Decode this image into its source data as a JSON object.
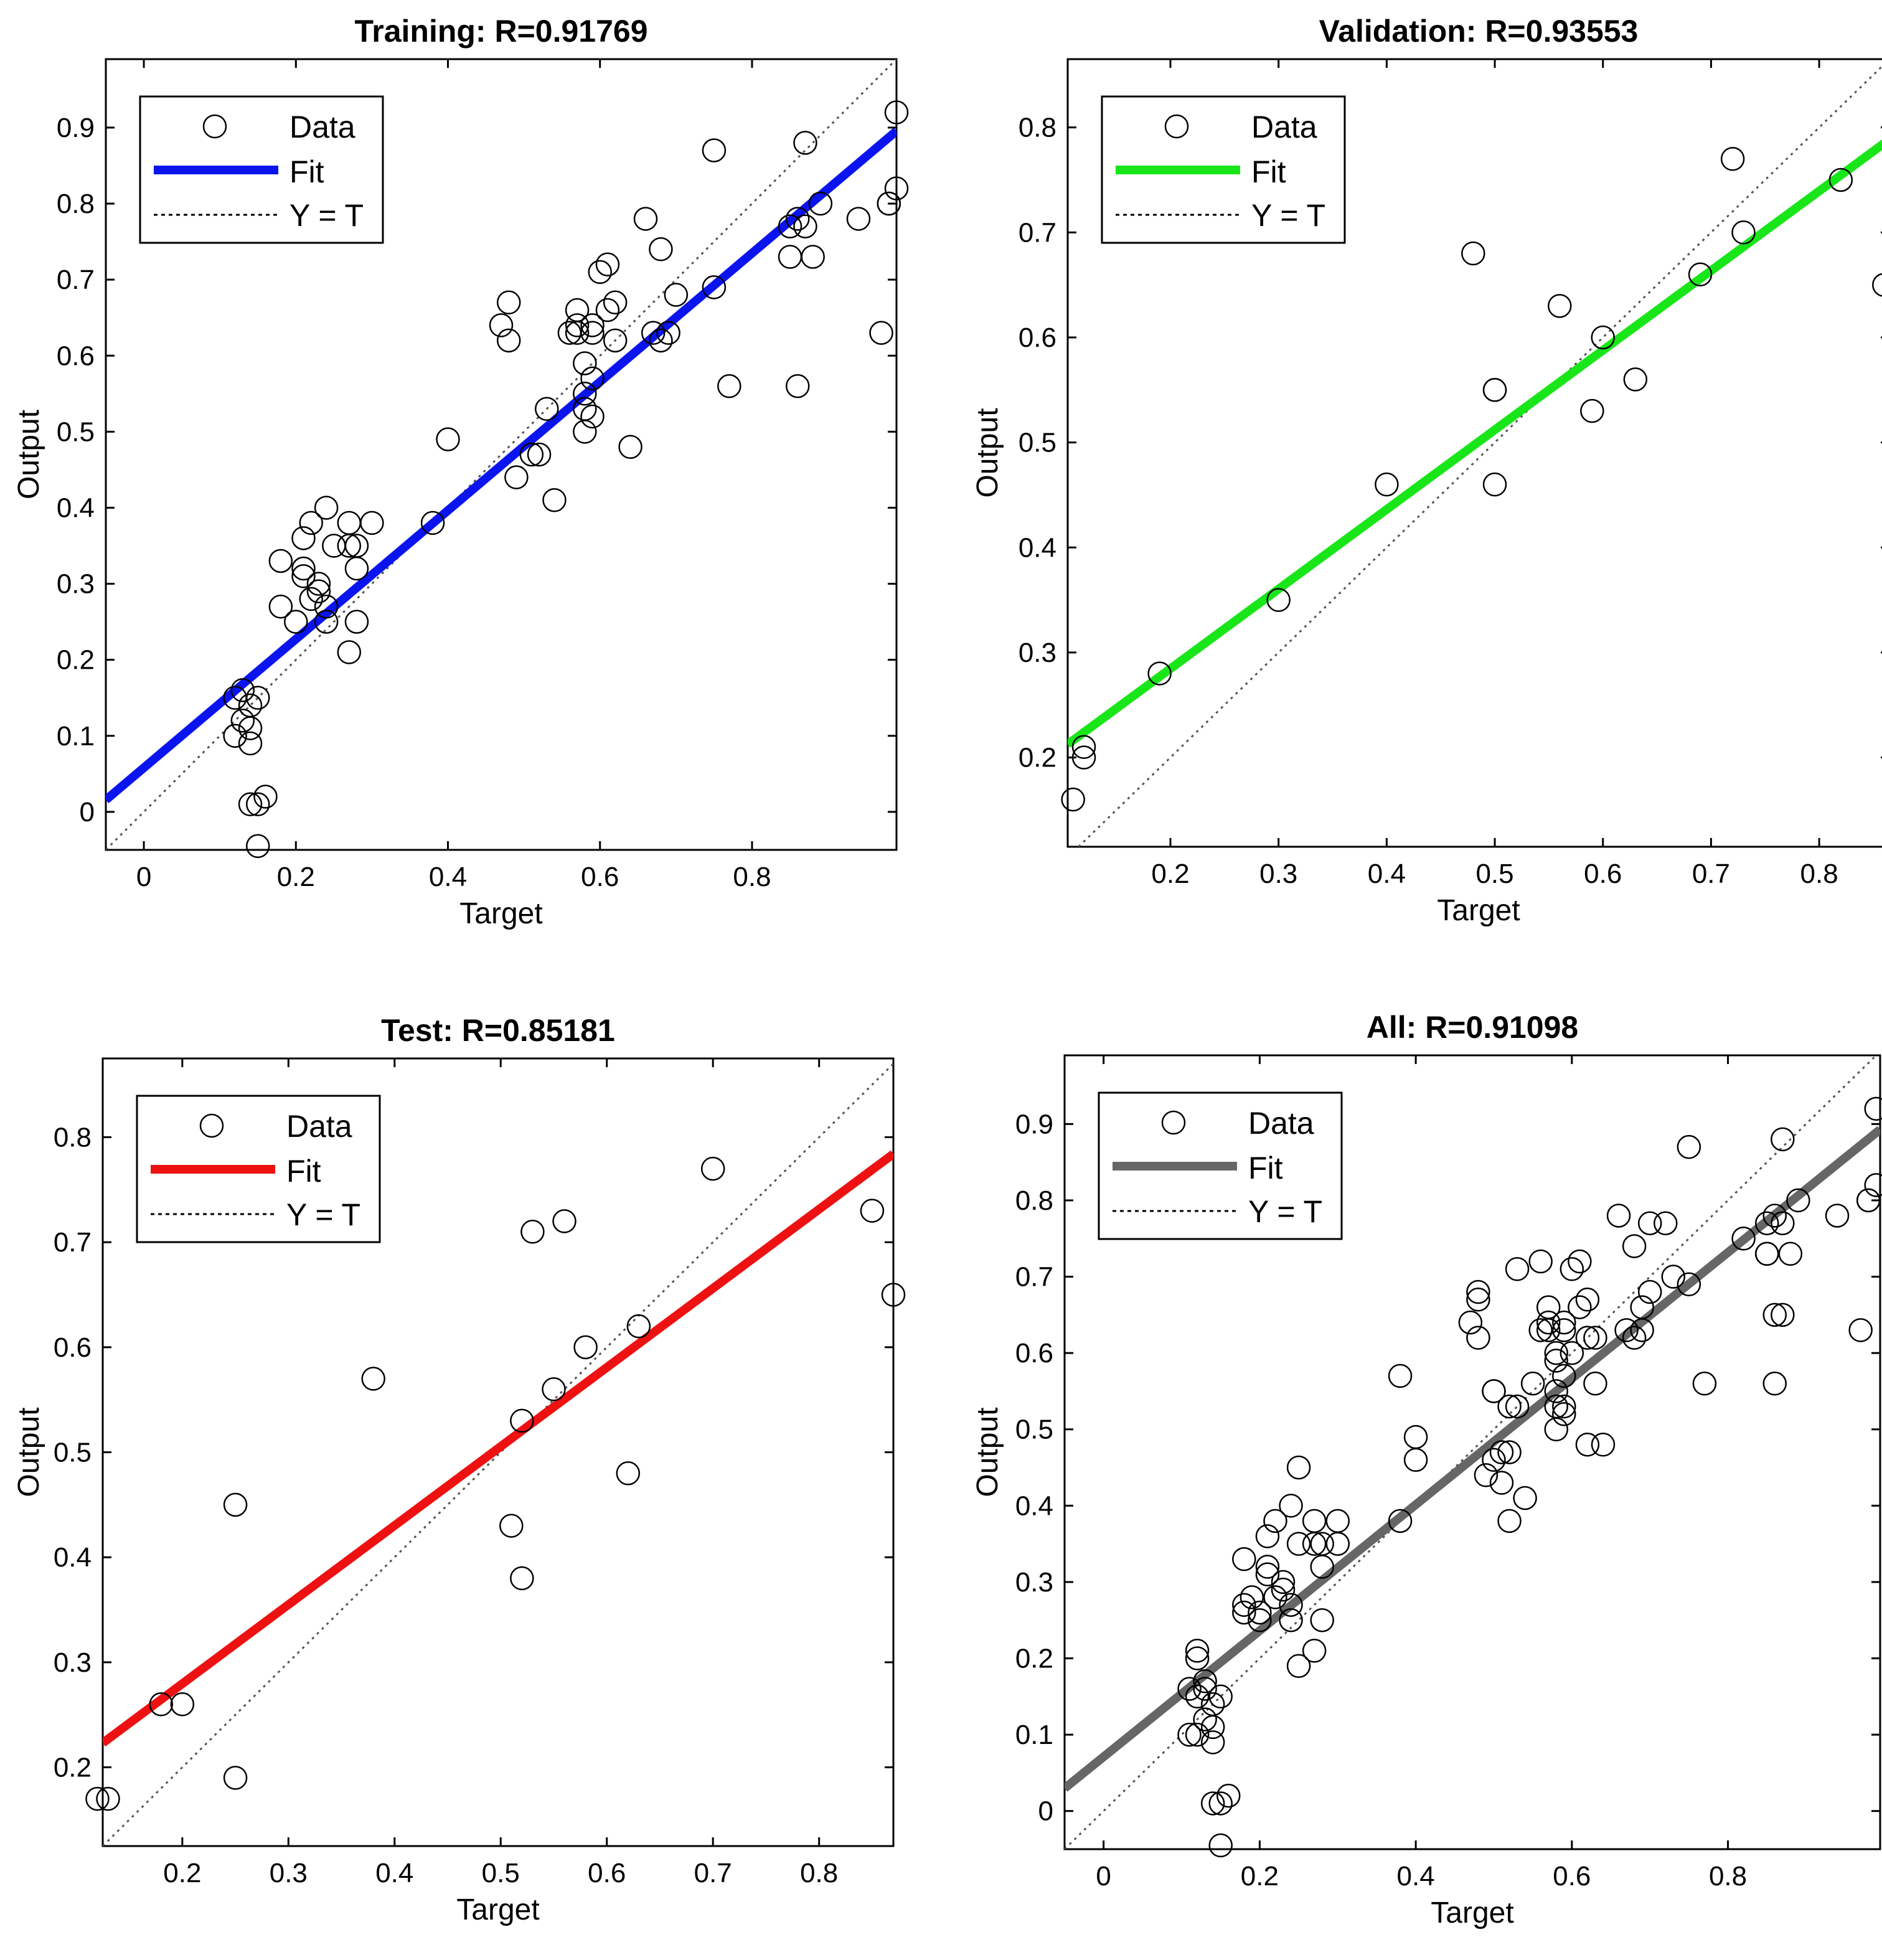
{
  "figure": {
    "x_axis_label": "Target",
    "y_axis_label": "Output",
    "legend": {
      "data_label": "Data",
      "fit_label": "Fit",
      "identity_label": "Y = T"
    }
  },
  "colors": {
    "training": "#0a14ee",
    "validation": "#19e619",
    "test": "#ee1111",
    "all": "#666666",
    "identity": "#555555",
    "axes": "#000000"
  },
  "chart_data": [
    {
      "type": "scatter",
      "key": "training",
      "title": "Training: R=0.91769",
      "xlabel": "Target",
      "ylabel": "Output",
      "xlim": [
        -0.05,
        0.99
      ],
      "ylim": [
        -0.05,
        0.99
      ],
      "xticks": [
        "0",
        "0.2",
        "0.4",
        "0.6",
        "0.8"
      ],
      "xtick_values": [
        0,
        0.2,
        0.4,
        0.6,
        0.8
      ],
      "yticks": [
        "0",
        "0.1",
        "0.2",
        "0.3",
        "0.4",
        "0.5",
        "0.6",
        "0.7",
        "0.8",
        "0.9"
      ],
      "ytick_values": [
        0,
        0.1,
        0.2,
        0.3,
        0.4,
        0.5,
        0.6,
        0.7,
        0.8,
        0.9
      ],
      "fit": {
        "color": "#0a14ee",
        "intercept": 0.058,
        "slope": 0.846
      },
      "points": [
        [
          0.12,
          0.15
        ],
        [
          0.12,
          0.1
        ],
        [
          0.13,
          0.12
        ],
        [
          0.13,
          0.16
        ],
        [
          0.14,
          0.14
        ],
        [
          0.14,
          0.11
        ],
        [
          0.14,
          0.09
        ],
        [
          0.14,
          0.01
        ],
        [
          0.15,
          0.15
        ],
        [
          0.15,
          -0.045
        ],
        [
          0.15,
          0.01
        ],
        [
          0.16,
          0.02
        ],
        [
          0.18,
          0.33
        ],
        [
          0.18,
          0.27
        ],
        [
          0.2,
          0.25
        ],
        [
          0.21,
          0.36
        ],
        [
          0.21,
          0.31
        ],
        [
          0.21,
          0.32
        ],
        [
          0.22,
          0.38
        ],
        [
          0.22,
          0.28
        ],
        [
          0.23,
          0.3
        ],
        [
          0.23,
          0.29
        ],
        [
          0.24,
          0.25
        ],
        [
          0.24,
          0.27
        ],
        [
          0.24,
          0.4
        ],
        [
          0.25,
          0.35
        ],
        [
          0.27,
          0.38
        ],
        [
          0.27,
          0.35
        ],
        [
          0.27,
          0.21
        ],
        [
          0.28,
          0.25
        ],
        [
          0.28,
          0.35
        ],
        [
          0.28,
          0.32
        ],
        [
          0.3,
          0.38
        ],
        [
          0.38,
          0.38
        ],
        [
          0.4,
          0.49
        ],
        [
          0.47,
          0.64
        ],
        [
          0.48,
          0.67
        ],
        [
          0.48,
          0.62
        ],
        [
          0.49,
          0.44
        ],
        [
          0.51,
          0.47
        ],
        [
          0.52,
          0.47
        ],
        [
          0.53,
          0.53
        ],
        [
          0.54,
          0.41
        ],
        [
          0.56,
          0.63
        ],
        [
          0.57,
          0.66
        ],
        [
          0.57,
          0.63
        ],
        [
          0.57,
          0.64
        ],
        [
          0.58,
          0.5
        ],
        [
          0.58,
          0.55
        ],
        [
          0.58,
          0.59
        ],
        [
          0.58,
          0.53
        ],
        [
          0.59,
          0.57
        ],
        [
          0.59,
          0.64
        ],
        [
          0.59,
          0.63
        ],
        [
          0.59,
          0.52
        ],
        [
          0.6,
          0.71
        ],
        [
          0.61,
          0.72
        ],
        [
          0.61,
          0.66
        ],
        [
          0.62,
          0.62
        ],
        [
          0.62,
          0.67
        ],
        [
          0.64,
          0.48
        ],
        [
          0.66,
          0.78
        ],
        [
          0.67,
          0.63
        ],
        [
          0.68,
          0.62
        ],
        [
          0.68,
          0.74
        ],
        [
          0.69,
          0.63
        ],
        [
          0.7,
          0.68
        ],
        [
          0.75,
          0.69
        ],
        [
          0.75,
          0.87
        ],
        [
          0.77,
          0.56
        ],
        [
          0.85,
          0.73
        ],
        [
          0.85,
          0.77
        ],
        [
          0.86,
          0.78
        ],
        [
          0.86,
          0.56
        ],
        [
          0.87,
          0.77
        ],
        [
          0.87,
          0.88
        ],
        [
          0.88,
          0.73
        ],
        [
          0.89,
          0.8
        ],
        [
          0.94,
          0.78
        ],
        [
          0.97,
          0.63
        ],
        [
          0.98,
          0.8
        ],
        [
          0.98,
          0.8
        ],
        [
          0.99,
          0.82
        ],
        [
          0.99,
          0.92
        ]
      ],
      "legend_location": "top-left"
    },
    {
      "type": "scatter",
      "key": "validation",
      "title": "Validation: R=0.93553",
      "xlabel": "Target",
      "ylabel": "Output",
      "xlim": [
        0.105,
        0.865
      ],
      "ylim": [
        0.115,
        0.865
      ],
      "xticks": [
        "0.2",
        "0.3",
        "0.4",
        "0.5",
        "0.6",
        "0.7",
        "0.8"
      ],
      "xtick_values": [
        0.2,
        0.3,
        0.4,
        0.5,
        0.6,
        0.7,
        0.8
      ],
      "yticks": [
        "0.2",
        "0.3",
        "0.4",
        "0.5",
        "0.6",
        "0.7",
        "0.8"
      ],
      "ytick_values": [
        0.2,
        0.3,
        0.4,
        0.5,
        0.6,
        0.7,
        0.8
      ],
      "fit": {
        "color": "#19e619",
        "intercept": 0.133,
        "slope": 0.758
      },
      "points": [
        [
          0.11,
          0.16
        ],
        [
          0.12,
          0.2
        ],
        [
          0.12,
          0.21
        ],
        [
          0.19,
          0.28
        ],
        [
          0.3,
          0.35
        ],
        [
          0.4,
          0.46
        ],
        [
          0.48,
          0.68
        ],
        [
          0.5,
          0.55
        ],
        [
          0.5,
          0.55
        ],
        [
          0.5,
          0.46
        ],
        [
          0.56,
          0.63
        ],
        [
          0.59,
          0.53
        ],
        [
          0.6,
          0.6
        ],
        [
          0.63,
          0.56
        ],
        [
          0.69,
          0.66
        ],
        [
          0.72,
          0.77
        ],
        [
          0.73,
          0.7
        ],
        [
          0.82,
          0.75
        ],
        [
          0.86,
          0.65
        ]
      ],
      "legend_location": "top-left"
    },
    {
      "type": "scatter",
      "key": "test",
      "title": "Test: R=0.85181",
      "xlabel": "Target",
      "ylabel": "Output",
      "xlim": [
        0.125,
        0.87
      ],
      "ylim": [
        0.125,
        0.875
      ],
      "xticks": [
        "0.2",
        "0.3",
        "0.4",
        "0.5",
        "0.6",
        "0.7",
        "0.8"
      ],
      "xtick_values": [
        0.2,
        0.3,
        0.4,
        0.5,
        0.6,
        0.7,
        0.8
      ],
      "yticks": [
        "0.2",
        "0.3",
        "0.4",
        "0.5",
        "0.6",
        "0.7",
        "0.8"
      ],
      "ytick_values": [
        0.2,
        0.3,
        0.4,
        0.5,
        0.6,
        0.7,
        0.8
      ],
      "fit": {
        "color": "#ee1111",
        "intercept": 0.129,
        "slope": 0.753
      },
      "points": [
        [
          0.12,
          0.17
        ],
        [
          0.13,
          0.17
        ],
        [
          0.18,
          0.26
        ],
        [
          0.2,
          0.26
        ],
        [
          0.25,
          0.45
        ],
        [
          0.25,
          0.19
        ],
        [
          0.38,
          0.57
        ],
        [
          0.51,
          0.43
        ],
        [
          0.52,
          0.38
        ],
        [
          0.52,
          0.53
        ],
        [
          0.53,
          0.71
        ],
        [
          0.55,
          0.56
        ],
        [
          0.56,
          0.72
        ],
        [
          0.58,
          0.6
        ],
        [
          0.62,
          0.48
        ],
        [
          0.63,
          0.62
        ],
        [
          0.7,
          0.77
        ],
        [
          0.85,
          0.73
        ],
        [
          0.87,
          0.65
        ]
      ],
      "legend_location": "top-left"
    },
    {
      "type": "scatter",
      "key": "all",
      "title": "All: R=0.91098",
      "xlabel": "Target",
      "ylabel": "Output",
      "xlim": [
        -0.05,
        0.995
      ],
      "ylim": [
        -0.05,
        0.99
      ],
      "xticks": [
        "0",
        "0.2",
        "0.4",
        "0.6",
        "0.8"
      ],
      "xtick_values": [
        0,
        0.2,
        0.4,
        0.6,
        0.8
      ],
      "yticks": [
        "0",
        "0.1",
        "0.2",
        "0.3",
        "0.4",
        "0.5",
        "0.6",
        "0.7",
        "0.8",
        "0.9"
      ],
      "ytick_values": [
        0,
        0.1,
        0.2,
        0.3,
        0.4,
        0.5,
        0.6,
        0.7,
        0.8,
        0.9
      ],
      "fit": {
        "color": "#666666",
        "intercept": 0.071,
        "slope": 0.826
      },
      "points": [
        [
          0.11,
          0.16
        ],
        [
          0.11,
          0.1
        ],
        [
          0.12,
          0.2
        ],
        [
          0.12,
          0.21
        ],
        [
          0.12,
          0.15
        ],
        [
          0.12,
          0.1
        ],
        [
          0.13,
          0.12
        ],
        [
          0.13,
          0.16
        ],
        [
          0.13,
          0.17
        ],
        [
          0.14,
          0.14
        ],
        [
          0.14,
          0.11
        ],
        [
          0.14,
          0.09
        ],
        [
          0.14,
          0.01
        ],
        [
          0.15,
          0.15
        ],
        [
          0.15,
          -0.045
        ],
        [
          0.15,
          0.01
        ],
        [
          0.16,
          0.02
        ],
        [
          0.18,
          0.33
        ],
        [
          0.18,
          0.27
        ],
        [
          0.18,
          0.26
        ],
        [
          0.19,
          0.28
        ],
        [
          0.2,
          0.25
        ],
        [
          0.2,
          0.26
        ],
        [
          0.21,
          0.36
        ],
        [
          0.21,
          0.31
        ],
        [
          0.21,
          0.32
        ],
        [
          0.22,
          0.38
        ],
        [
          0.22,
          0.28
        ],
        [
          0.23,
          0.3
        ],
        [
          0.23,
          0.29
        ],
        [
          0.24,
          0.25
        ],
        [
          0.24,
          0.27
        ],
        [
          0.24,
          0.4
        ],
        [
          0.25,
          0.35
        ],
        [
          0.25,
          0.45
        ],
        [
          0.25,
          0.19
        ],
        [
          0.27,
          0.38
        ],
        [
          0.27,
          0.35
        ],
        [
          0.27,
          0.21
        ],
        [
          0.28,
          0.25
        ],
        [
          0.28,
          0.35
        ],
        [
          0.28,
          0.32
        ],
        [
          0.3,
          0.38
        ],
        [
          0.3,
          0.35
        ],
        [
          0.38,
          0.38
        ],
        [
          0.38,
          0.57
        ],
        [
          0.4,
          0.49
        ],
        [
          0.4,
          0.46
        ],
        [
          0.47,
          0.64
        ],
        [
          0.48,
          0.67
        ],
        [
          0.48,
          0.62
        ],
        [
          0.48,
          0.68
        ],
        [
          0.49,
          0.44
        ],
        [
          0.5,
          0.55
        ],
        [
          0.5,
          0.55
        ],
        [
          0.5,
          0.46
        ],
        [
          0.51,
          0.47
        ],
        [
          0.51,
          0.43
        ],
        [
          0.52,
          0.47
        ],
        [
          0.52,
          0.38
        ],
        [
          0.52,
          0.53
        ],
        [
          0.53,
          0.53
        ],
        [
          0.53,
          0.71
        ],
        [
          0.54,
          0.41
        ],
        [
          0.55,
          0.56
        ],
        [
          0.56,
          0.63
        ],
        [
          0.56,
          0.72
        ],
        [
          0.57,
          0.66
        ],
        [
          0.57,
          0.63
        ],
        [
          0.57,
          0.64
        ],
        [
          0.58,
          0.5
        ],
        [
          0.58,
          0.55
        ],
        [
          0.58,
          0.59
        ],
        [
          0.58,
          0.53
        ],
        [
          0.58,
          0.6
        ],
        [
          0.59,
          0.57
        ],
        [
          0.59,
          0.64
        ],
        [
          0.59,
          0.63
        ],
        [
          0.59,
          0.52
        ],
        [
          0.59,
          0.53
        ],
        [
          0.6,
          0.71
        ],
        [
          0.6,
          0.6
        ],
        [
          0.61,
          0.72
        ],
        [
          0.61,
          0.66
        ],
        [
          0.62,
          0.62
        ],
        [
          0.62,
          0.67
        ],
        [
          0.62,
          0.48
        ],
        [
          0.63,
          0.56
        ],
        [
          0.63,
          0.62
        ],
        [
          0.64,
          0.48
        ],
        [
          0.66,
          0.78
        ],
        [
          0.67,
          0.63
        ],
        [
          0.68,
          0.62
        ],
        [
          0.68,
          0.74
        ],
        [
          0.69,
          0.63
        ],
        [
          0.69,
          0.66
        ],
        [
          0.7,
          0.68
        ],
        [
          0.7,
          0.77
        ],
        [
          0.72,
          0.77
        ],
        [
          0.73,
          0.7
        ],
        [
          0.75,
          0.69
        ],
        [
          0.75,
          0.87
        ],
        [
          0.77,
          0.56
        ],
        [
          0.82,
          0.75
        ],
        [
          0.85,
          0.73
        ],
        [
          0.85,
          0.77
        ],
        [
          0.85,
          0.73
        ],
        [
          0.86,
          0.78
        ],
        [
          0.86,
          0.56
        ],
        [
          0.86,
          0.65
        ],
        [
          0.87,
          0.77
        ],
        [
          0.87,
          0.88
        ],
        [
          0.87,
          0.65
        ],
        [
          0.88,
          0.73
        ],
        [
          0.89,
          0.8
        ],
        [
          0.94,
          0.78
        ],
        [
          0.97,
          0.63
        ],
        [
          0.98,
          0.8
        ],
        [
          0.98,
          0.8
        ],
        [
          0.99,
          0.82
        ],
        [
          0.99,
          0.92
        ]
      ],
      "legend_location": "top-left"
    }
  ]
}
